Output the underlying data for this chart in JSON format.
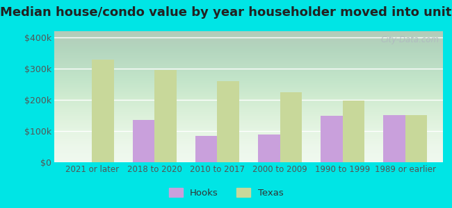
{
  "title": "Median house/condo value by year householder moved into unit",
  "categories": [
    "2021 or later",
    "2018 to 2020",
    "2010 to 2017",
    "2000 to 2009",
    "1990 to 1999",
    "1989 or earlier"
  ],
  "hooks_values": [
    null,
    135000,
    85000,
    88000,
    148000,
    152000
  ],
  "texas_values": [
    330000,
    295000,
    260000,
    225000,
    197000,
    152000
  ],
  "hooks_color": "#c9a0dc",
  "texas_color": "#c8d89a",
  "background_color_bottom": "#d8edcc",
  "background_color_top": "#f0f8f0",
  "outer_background": "#00e5e5",
  "yticks": [
    0,
    100000,
    200000,
    300000,
    400000
  ],
  "ytick_labels": [
    "$0",
    "$100k",
    "$200k",
    "$300k",
    "$400k"
  ],
  "ylim": [
    0,
    420000
  ],
  "bar_width": 0.35,
  "legend_labels": [
    "Hooks",
    "Texas"
  ],
  "watermark": "City-Data.com",
  "title_fontsize": 13,
  "tick_fontsize": 8.5,
  "ytick_fontsize": 9
}
